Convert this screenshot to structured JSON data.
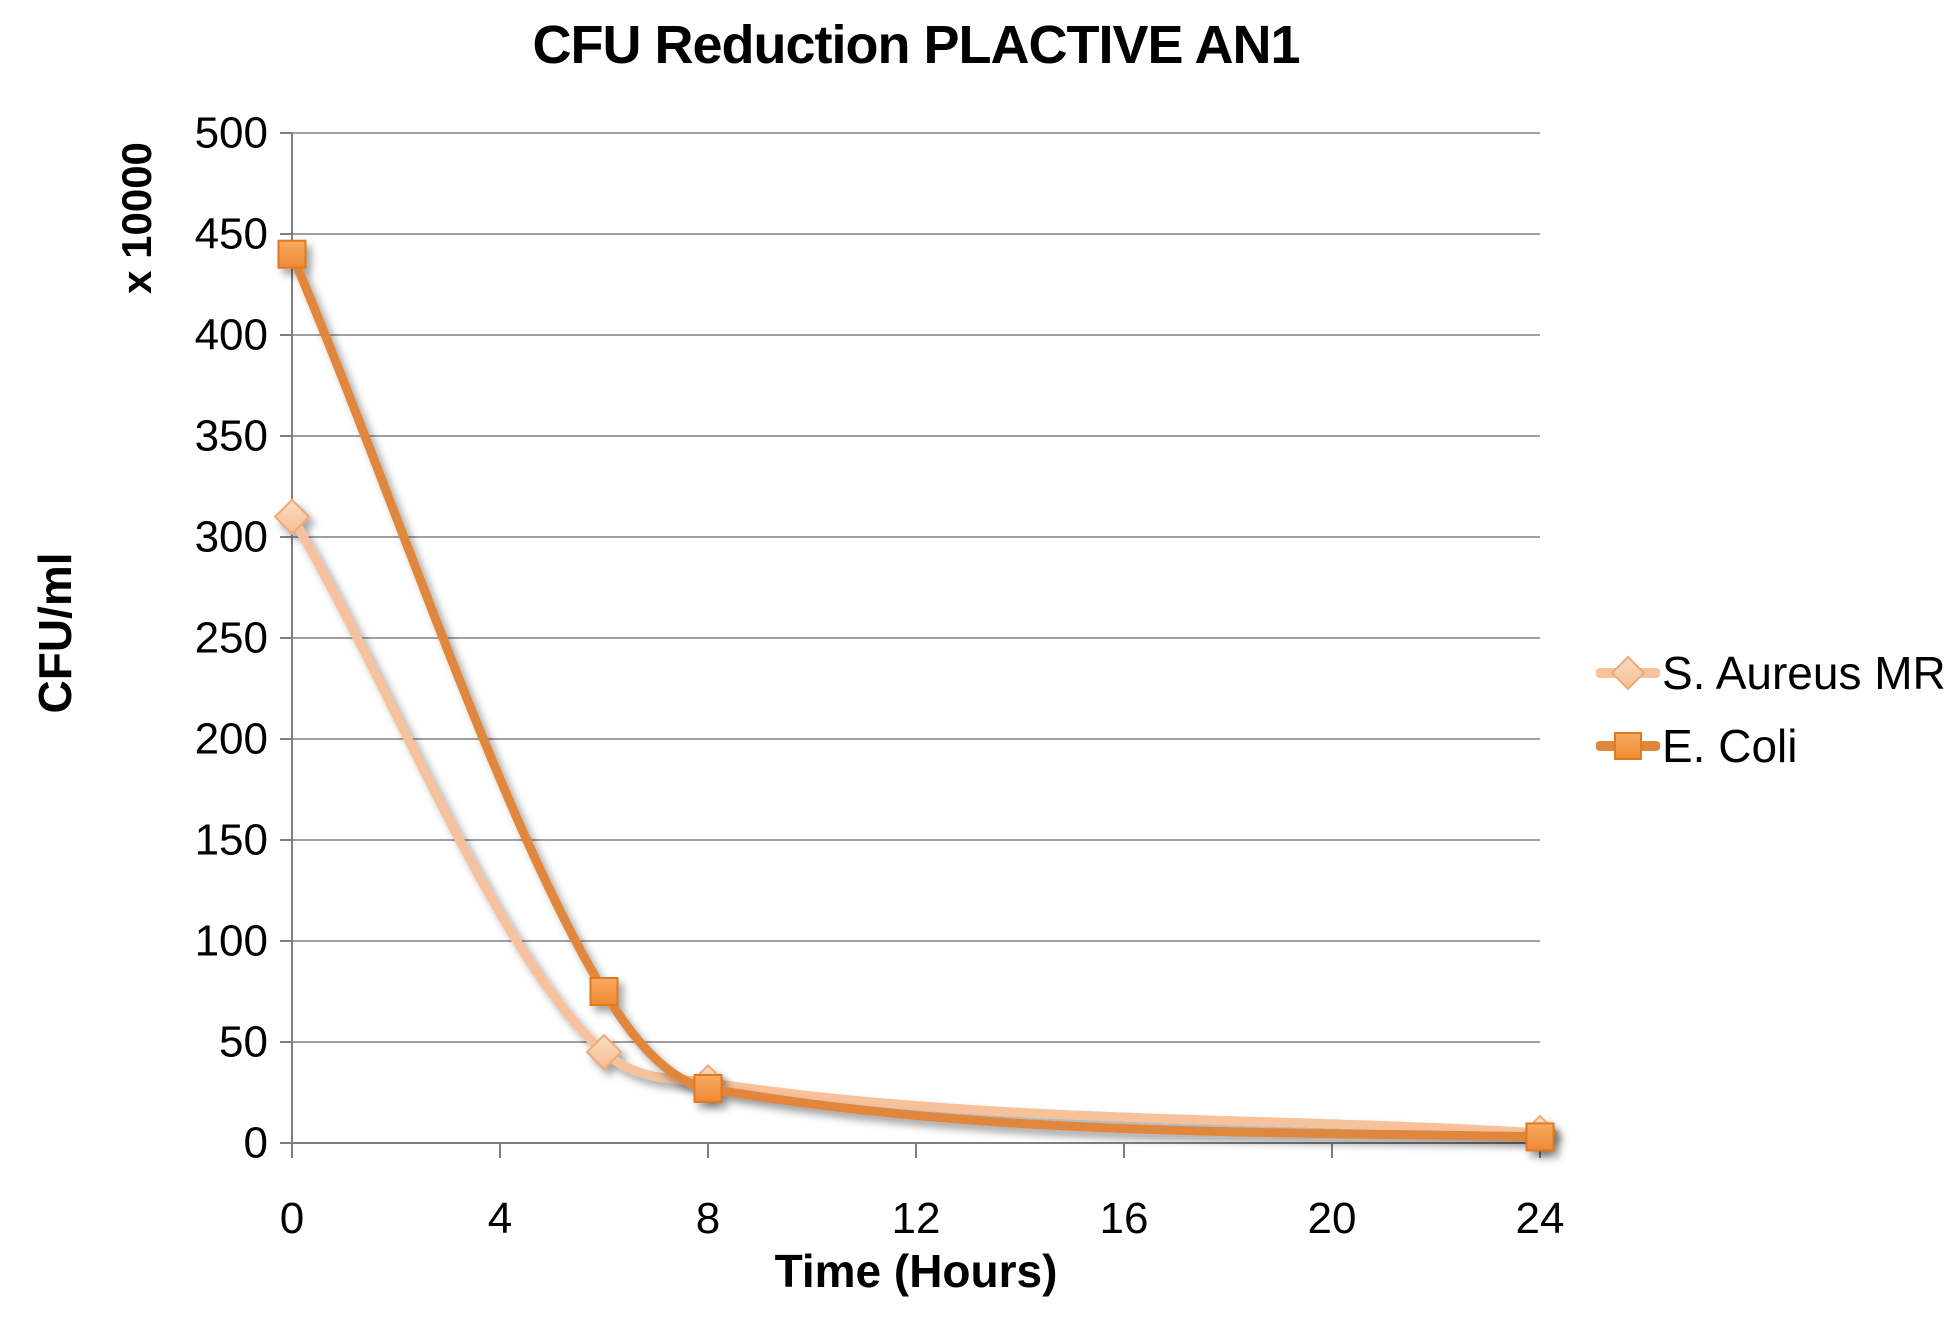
{
  "chart_data": {
    "type": "line",
    "title": "CFU Reduction PLACTIVE AN1",
    "xlabel": "Time (Hours)",
    "ylabel": "CFU/ml",
    "y_multiplier_label": "x 10000",
    "xlim": [
      0,
      24
    ],
    "ylim": [
      0,
      500
    ],
    "x_ticks": [
      0,
      4,
      8,
      12,
      16,
      20,
      24
    ],
    "y_tick_step": 50,
    "grid": true,
    "legend_position": "right",
    "x": [
      0,
      6,
      8,
      24
    ],
    "series": [
      {
        "name": "S. Aureus MR",
        "marker": "diamond",
        "values": [
          310,
          45,
          30,
          5
        ],
        "line_color": "#F6C19B",
        "marker_fill_top": "#FCDCC0",
        "marker_fill_bottom": "#F6BE93",
        "marker_border": "#EFA978"
      },
      {
        "name": "E. Coli",
        "marker": "square",
        "values": [
          440,
          75,
          27,
          3
        ],
        "line_color": "#E1873C",
        "marker_fill_top": "#F9AA62",
        "marker_fill_bottom": "#EE8A33",
        "marker_border": "#DD7A22"
      }
    ],
    "colors": {
      "gridline": "#A0A0A0",
      "axis": "#7F7F7F",
      "text": "#000000",
      "background": "#FFFFFF"
    }
  }
}
